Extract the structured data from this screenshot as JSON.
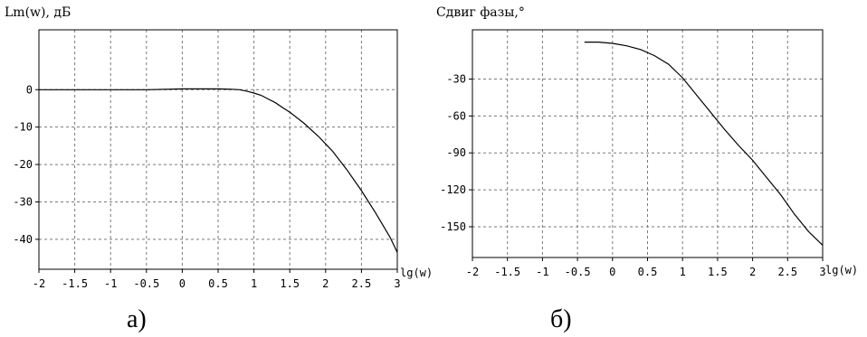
{
  "chart_data": [
    {
      "type": "line",
      "title": "Lm(w), дБ",
      "xlabel": "lg(w)",
      "caption": "а)",
      "xlim": [
        -2,
        3
      ],
      "ylim": [
        -48,
        16
      ],
      "grid": true,
      "x_ticks": [
        "-2",
        "-1.5",
        "-1",
        "-0.5",
        "0",
        "0.5",
        "1",
        "1.5",
        "2",
        "2.5",
        "3"
      ],
      "y_ticks": [
        "0",
        "-10",
        "-20",
        "-30",
        "-40"
      ],
      "x_tick_values": [
        -2,
        -1.5,
        -1,
        -0.5,
        0,
        0.5,
        1,
        1.5,
        2,
        2.5,
        3
      ],
      "y_tick_values": [
        0,
        -10,
        -20,
        -30,
        -40
      ],
      "series": [
        {
          "x": [
            -2,
            -1.5,
            -1,
            -0.5,
            0,
            0.5,
            0.7,
            0.8,
            0.9,
            1.0,
            1.1,
            1.2,
            1.3,
            1.4,
            1.5,
            1.7,
            1.9,
            2.0,
            2.1,
            2.3,
            2.5,
            2.7,
            2.9,
            3.0
          ],
          "y": [
            0,
            0,
            0,
            0,
            0.2,
            0.2,
            0.1,
            0,
            -0.4,
            -0.9,
            -1.5,
            -2.5,
            -3.5,
            -4.8,
            -6.0,
            -9.0,
            -12.5,
            -14.5,
            -16.5,
            -21.5,
            -27.0,
            -33.0,
            -39.5,
            -43.5
          ]
        }
      ]
    },
    {
      "type": "line",
      "title": "Сдвиг фазы,°",
      "xlabel": "lg(w)",
      "caption": "б)",
      "xlim": [
        -2,
        3
      ],
      "ylim": [
        -175,
        10
      ],
      "grid": true,
      "x_ticks": [
        "-2",
        "-1.5",
        "-1",
        "-0.5",
        "0",
        "0.5",
        "1",
        "1.5",
        "2",
        "2.5",
        "3"
      ],
      "y_ticks": [
        "-30",
        "-60",
        "-90",
        "-120",
        "-150"
      ],
      "x_tick_values": [
        -2,
        -1.5,
        -1,
        -0.5,
        0,
        0.5,
        1,
        1.5,
        2,
        2.5,
        3
      ],
      "y_tick_values": [
        -30,
        -60,
        -90,
        -120,
        -150
      ],
      "series": [
        {
          "x": [
            -0.4,
            -0.2,
            0,
            0.2,
            0.4,
            0.6,
            0.8,
            1.0,
            1.2,
            1.4,
            1.6,
            1.8,
            2.0,
            2.2,
            2.4,
            2.6,
            2.8,
            3.0
          ],
          "y": [
            0,
            0,
            -1,
            -3,
            -6,
            -11,
            -18,
            -29,
            -43,
            -57,
            -71,
            -84,
            -96,
            -110,
            -124,
            -140,
            -154,
            -165
          ]
        }
      ]
    }
  ]
}
